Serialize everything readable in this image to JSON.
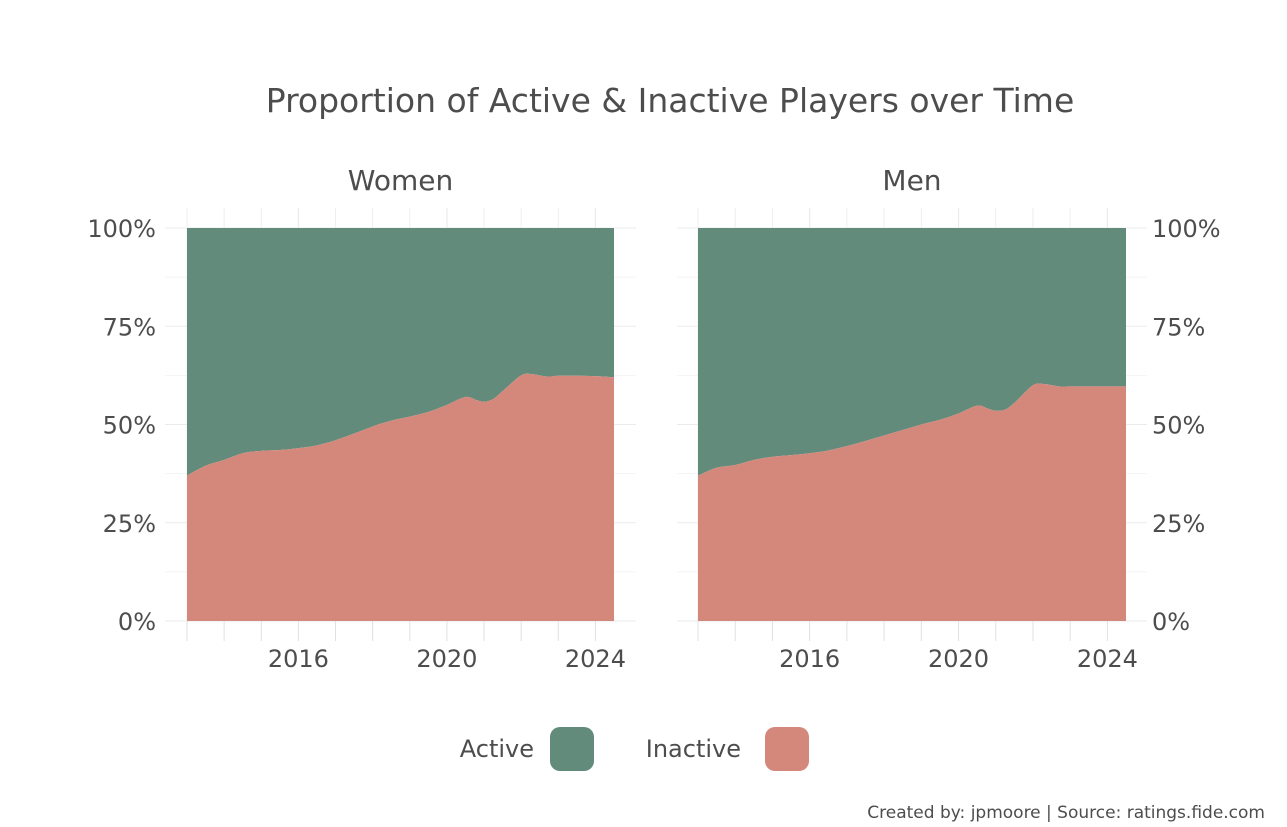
{
  "chart_data": {
    "type": "area",
    "stacked": "fill",
    "title": "Proportion of Active & Inactive Players over Time",
    "caption": "Created by: jpmoore | Source: ratings.fide.com",
    "x_ticks": [
      "2016",
      "2020",
      "2024"
    ],
    "x_tick_values": [
      2016,
      2020,
      2024
    ],
    "xlim": [
      2012.4,
      2024.8
    ],
    "y_ticks": [
      "0%",
      "25%",
      "50%",
      "75%",
      "100%"
    ],
    "y_tick_values": [
      0,
      0.25,
      0.5,
      0.75,
      1.0
    ],
    "ylim": [
      0,
      1
    ],
    "grid": true,
    "legend": {
      "position": "bottom",
      "items": [
        {
          "label": "Active",
          "color": "#628b7b"
        },
        {
          "label": "Inactive",
          "color": "#d4887c"
        }
      ]
    },
    "panels": [
      {
        "name": "Women",
        "y_axis_side": "left",
        "x": [
          2013.0,
          2013.5,
          2014.0,
          2014.5,
          2015.0,
          2015.5,
          2016.0,
          2016.5,
          2017.0,
          2017.5,
          2018.0,
          2018.5,
          2019.0,
          2019.5,
          2020.0,
          2020.5,
          2020.8,
          2021.0,
          2021.25,
          2021.5,
          2022.0,
          2022.3,
          2022.7,
          2023.0,
          2023.5,
          2024.0,
          2024.5
        ],
        "series": [
          {
            "name": "Inactive",
            "values": [
              0.37,
              0.395,
              0.41,
              0.427,
              0.433,
              0.435,
              0.44,
              0.447,
              0.46,
              0.477,
              0.495,
              0.51,
              0.52,
              0.532,
              0.55,
              0.57,
              0.562,
              0.558,
              0.565,
              0.585,
              0.625,
              0.628,
              0.622,
              0.624,
              0.624,
              0.623,
              0.62
            ]
          },
          {
            "name": "Active",
            "values": [
              0.63,
              0.605,
              0.59,
              0.573,
              0.567,
              0.565,
              0.56,
              0.553,
              0.54,
              0.523,
              0.505,
              0.49,
              0.48,
              0.468,
              0.45,
              0.43,
              0.438,
              0.442,
              0.435,
              0.415,
              0.375,
              0.372,
              0.378,
              0.376,
              0.376,
              0.377,
              0.38
            ]
          }
        ]
      },
      {
        "name": "Men",
        "y_axis_side": "right",
        "x": [
          2013.0,
          2013.5,
          2014.0,
          2014.5,
          2015.0,
          2015.5,
          2016.0,
          2016.5,
          2017.0,
          2017.5,
          2018.0,
          2018.5,
          2019.0,
          2019.5,
          2020.0,
          2020.5,
          2020.8,
          2021.0,
          2021.25,
          2021.5,
          2022.0,
          2022.3,
          2022.7,
          2023.0,
          2023.5,
          2024.0,
          2024.5
        ],
        "series": [
          {
            "name": "Inactive",
            "values": [
              0.37,
              0.39,
              0.397,
              0.41,
              0.418,
              0.422,
              0.427,
              0.434,
              0.445,
              0.458,
              0.472,
              0.486,
              0.5,
              0.512,
              0.528,
              0.548,
              0.54,
              0.535,
              0.538,
              0.555,
              0.6,
              0.603,
              0.597,
              0.597,
              0.597,
              0.597,
              0.597
            ]
          },
          {
            "name": "Active",
            "values": [
              0.63,
              0.61,
              0.603,
              0.59,
              0.582,
              0.578,
              0.573,
              0.566,
              0.555,
              0.542,
              0.528,
              0.514,
              0.5,
              0.488,
              0.472,
              0.452,
              0.46,
              0.465,
              0.462,
              0.445,
              0.4,
              0.397,
              0.403,
              0.403,
              0.403,
              0.403,
              0.403
            ]
          }
        ]
      }
    ]
  }
}
